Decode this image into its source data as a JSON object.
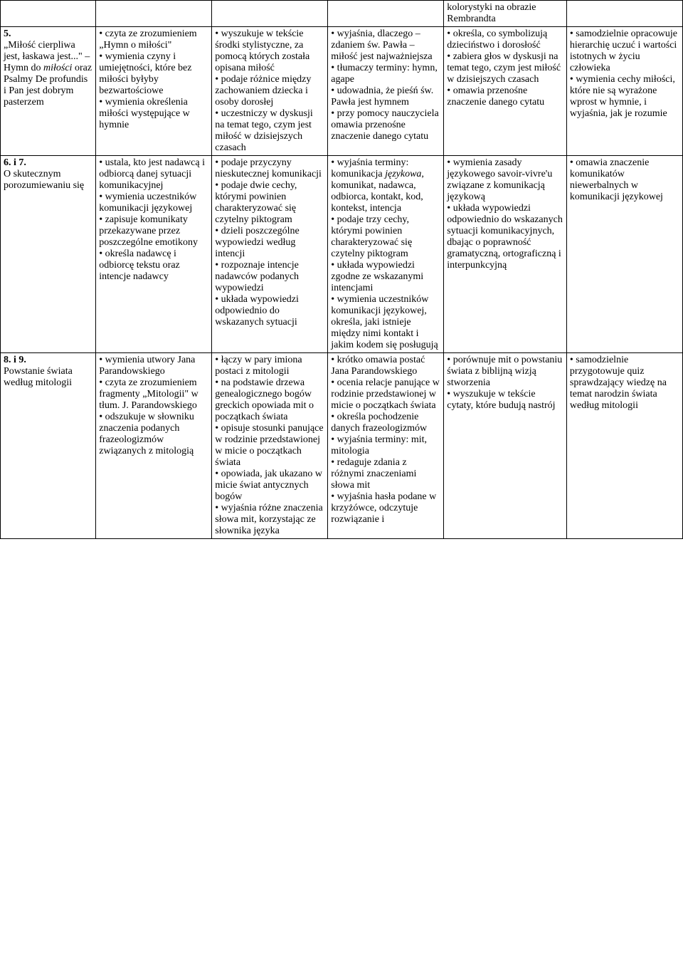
{
  "row0": {
    "col4": "kolorystyki na obrazie Rembrandta"
  },
  "row1": {
    "col0_a": "5.",
    "col0_b": "„Miłość cierpliwa jest, łaskawa jest...\" – Hymn do ",
    "col0_c": "miłości",
    "col0_d": " oraz Psalmy De profundis i Pan jest dobrym pasterzem",
    "col1": "• czyta ze zrozumieniem „Hymn o miłości\"\n• wymienia czyny i umiejętności, które bez miłości byłyby bezwartościowe\n• wymienia określenia miłości występujące w hymnie",
    "col2": "• wyszukuje w tekście środki stylistyczne, za pomocą których została opisana miłość\n• podaje różnice między zachowaniem dziecka i osoby dorosłej\n• uczestniczy w dyskusji na temat tego, czym jest miłość w dzisiejszych czasach",
    "col3": "• wyjaśnia, dlaczego – zdaniem św. Pawła – miłość jest najważniejsza\n• tłumaczy terminy: hymn, agape\n• udowadnia, że pieśń św. Pawła jest hymnem\n• przy pomocy nauczyciela omawia przenośne znaczenie danego cytatu",
    "col4": "• określa, co symbolizują dzieciństwo i dorosłość\n• zabiera głos w dyskusji na temat tego, czym jest miłość w dzisiejszych czasach\n• omawia przenośne znaczenie danego cytatu",
    "col5": "• samodzielnie opracowuje hierarchię uczuć i wartości istotnych w życiu człowieka\n• wymienia cechy miłości, które nie są wyrażone wprost w hymnie, i wyjaśnia, jak je rozumie"
  },
  "row2": {
    "col0_a": "6. i 7.",
    "col0_b": "O skutecznym porozumiewaniu się",
    "col1": "• ustala, kto jest nadawcą i odbiorcą danej sytuacji komunikacyjnej\n• wymienia uczestników komunikacji językowej\n• zapisuje komunikaty przekazywane przez poszczególne emotikony\n• określa nadawcę i odbiorcę tekstu oraz intencje nadawcy",
    "col2": "• podaje przyczyny nieskutecznej komunikacji\n• podaje dwie cechy, którymi powinien charakteryzować się czytelny piktogram\n• dzieli poszczególne wypowiedzi według intencji\n• rozpoznaje intencje nadawców podanych wypowiedzi\n• układa wypowiedzi odpowiednio do wskazanych sytuacji",
    "col3_a": "• wyjaśnia terminy: komunikacja ",
    "col3_b": "językowa",
    "col3_c": ", komunikat, nadawca, odbiorca, kontakt, kod, kontekst, intencja\n• podaje trzy cechy, którymi powinien charakteryzować się czytelny piktogram\n• układa wypowiedzi zgodne ze wskazanymi intencjami\n• wymienia uczestników komunikacji językowej, określa, jaki istnieje między nimi kontakt i jakim kodem się posługują",
    "col4": "• wymienia zasady językowego savoir-vivre'u związane z komunikacją językową\n• układa wypowiedzi odpowiednio do wskazanych sytuacji komunikacyjnych, dbając o poprawność gramatyczną, ortograficzną i interpunkcyjną",
    "col5": "• omawia znaczenie komunikatów niewerbalnych w komunikacji językowej"
  },
  "row3": {
    "col0_a": "8. i 9.",
    "col0_b": "Powstanie świata według mitologii",
    "col1": "• wymienia utwory Jana Parandowskiego\n• czyta ze zrozumieniem fragmenty „Mitologii\" w tłum. J. Parandowskiego\n• odszukuje w słowniku znaczenia podanych frazeologizmów związanych z mitologią",
    "col2": "• łączy w pary imiona postaci z mitologii\n• na podstawie drzewa genealogicznego bogów greckich opowiada mit o początkach świata\n• opisuje stosunki panujące w rodzinie przedstawionej w micie o początkach świata\n• opowiada, jak ukazano w micie świat antycznych bogów\n• wyjaśnia różne znaczenia słowa mit, korzystając ze słownika języka",
    "col3": "• krótko omawia postać Jana Parandowskiego\n• ocenia relacje panujące w rodzinie przedstawionej w micie o początkach świata\n• określa pochodzenie danych frazeologizmów\n• wyjaśnia terminy: mit, mitologia\n• redaguje zdania z różnymi znaczeniami słowa mit\n• wyjaśnia hasła podane w krzyżówce, odczytuje rozwiązanie i",
    "col4": "• porównuje mit o powstaniu świata z biblijną wizją stworzenia\n• wyszukuje w tekście cytaty, które budują nastrój",
    "col5": "• samodzielnie przygotowuje quiz sprawdzający wiedzę na temat narodzin świata według mitologii"
  }
}
